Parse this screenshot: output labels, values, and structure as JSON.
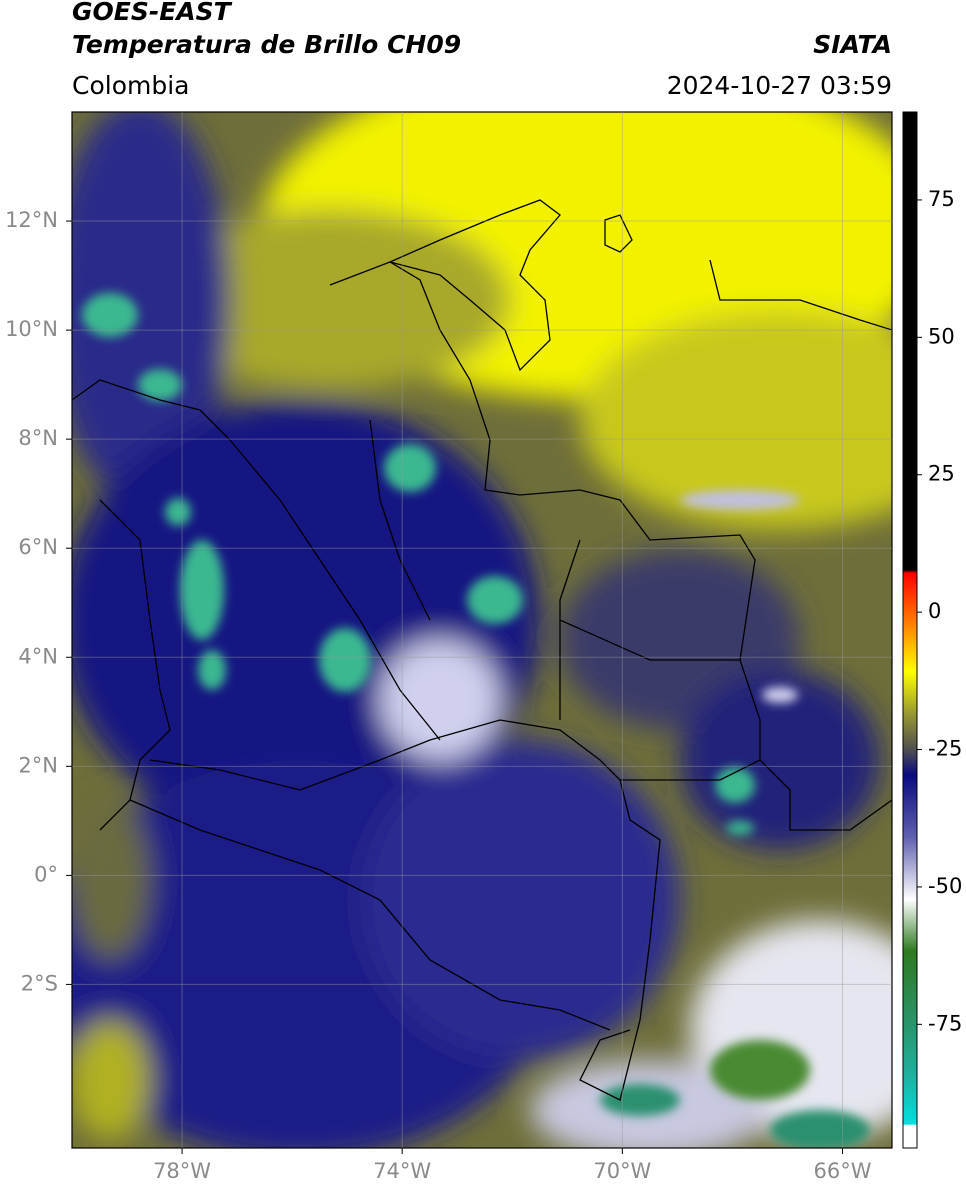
{
  "map": {
    "title": "GOES-EAST",
    "subtitle": "Temperatura de Brillo CH09",
    "source": "SIATA",
    "region": "Colombia",
    "datetime": "2024-10-27 03:59",
    "xlim": [
      -80,
      -65.1
    ],
    "ylim": [
      -5,
      14
    ],
    "xticks": [
      {
        "value": -78,
        "label": "78°W"
      },
      {
        "value": -74,
        "label": "74°W"
      },
      {
        "value": -70,
        "label": "70°W"
      },
      {
        "value": -66,
        "label": "66°W"
      }
    ],
    "yticks": [
      {
        "value": 12,
        "label": "12°N"
      },
      {
        "value": 10,
        "label": "10°N"
      },
      {
        "value": 8,
        "label": "8°N"
      },
      {
        "value": 6,
        "label": "6°N"
      },
      {
        "value": 4,
        "label": "4°N"
      },
      {
        "value": 2,
        "label": "2°N"
      },
      {
        "value": 0,
        "label": "0°"
      },
      {
        "value": -2,
        "label": "2°S"
      }
    ],
    "colorbar": {
      "lim": [
        -97.5,
        91
      ],
      "ticks": [
        75,
        50,
        25,
        0,
        -25,
        -50,
        -75
      ]
    }
  }
}
